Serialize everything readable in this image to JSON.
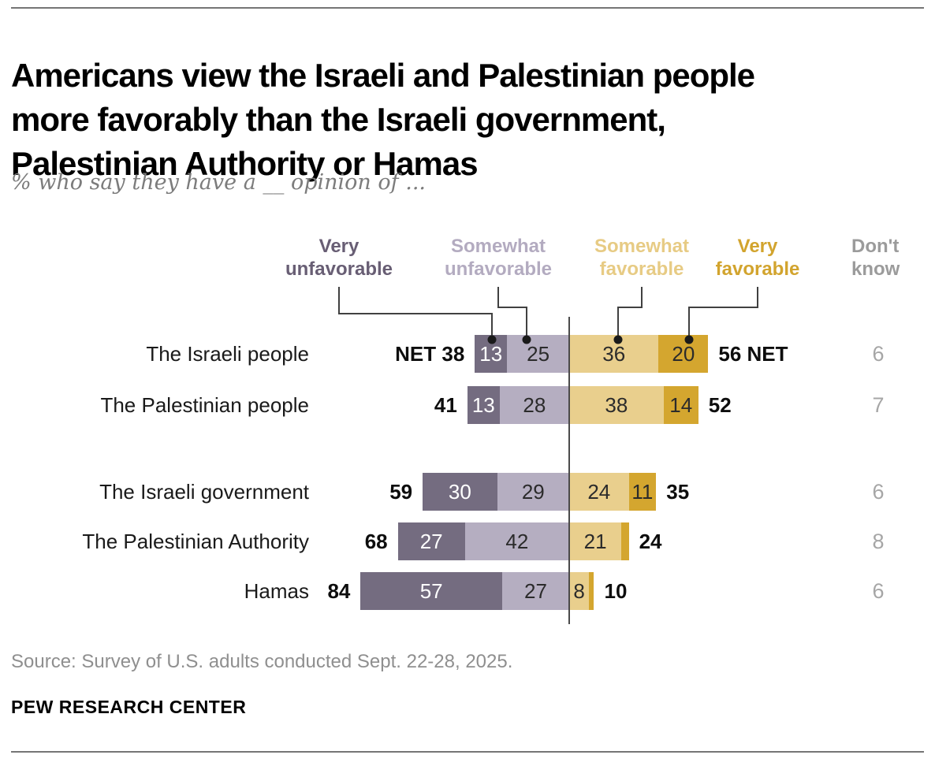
{
  "header": {
    "title_lines": [
      "Americans view the Israeli and Palestinian people",
      "more favorably than the Israeli government,",
      "Palestinian Authority or Hamas"
    ],
    "subtitle": "% who say they have a __ opinion of ..."
  },
  "chart_data": {
    "type": "bar",
    "subtype": "diverging_stacked_horizontal",
    "title": "Americans view the Israeli and Palestinian people more favorably than the Israeli government, Palestinian Authority or Hamas",
    "xlabel": "",
    "ylabel": "",
    "unit": "percent",
    "legend_position": "top",
    "categories": [
      "The Israeli people",
      "The Palestinian people",
      "The Israeli government",
      "The Palestinian Authority",
      "Hamas"
    ],
    "series": [
      {
        "name": "Very unfavorable",
        "color": "#746c80",
        "text_color": "#ffffff",
        "legend_text_color": "#685e74",
        "values": [
          13,
          13,
          30,
          27,
          57
        ]
      },
      {
        "name": "Somewhat unfavorable",
        "color": "#b5aec1",
        "text_color": "#2b2b2b",
        "legend_text_color": "#b3abc0",
        "values": [
          25,
          28,
          29,
          42,
          27
        ]
      },
      {
        "name": "Somewhat favorable",
        "color": "#e9cf8d",
        "text_color": "#2b2b2b",
        "legend_text_color": "#e7cb84",
        "values": [
          36,
          38,
          24,
          21,
          8
        ]
      },
      {
        "name": "Very favorable",
        "color": "#d4a62f",
        "text_color": "#2b2b2b",
        "legend_text_color": "#d2a42e",
        "values": [
          20,
          14,
          11,
          3,
          2
        ]
      }
    ],
    "dont_know": {
      "label": "Don't know",
      "header_color": "#9b9b9b",
      "value_color": "#a6a6a6",
      "values": [
        6,
        7,
        6,
        8,
        6
      ]
    },
    "net_label": "NET",
    "net_unfavorable": [
      38,
      41,
      59,
      68,
      84
    ],
    "net_favorable": [
      56,
      52,
      35,
      24,
      10
    ],
    "net_word_shown_on_first_row_only": true,
    "axis_color": "#4a4a4a",
    "connector_color": "#404040",
    "dot_color": "#1a1a1a"
  },
  "footer": {
    "source": "Source: Survey of U.S. adults conducted Sept. 22-28, 2025.",
    "brand": "PEW RESEARCH CENTER"
  }
}
